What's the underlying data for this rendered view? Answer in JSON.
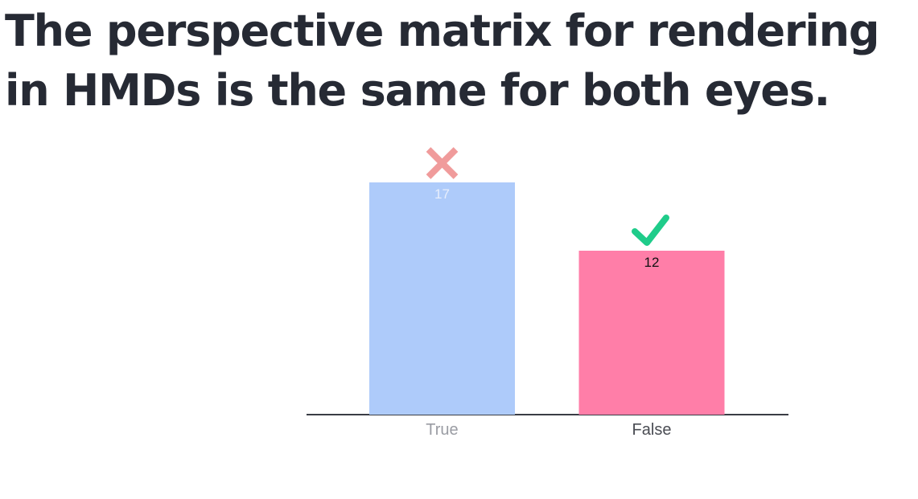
{
  "slide": {
    "question": "The perspective matrix for rendering in HMDs is the same for both eyes."
  },
  "chart_data": {
    "type": "bar",
    "categories": [
      "True",
      "False"
    ],
    "values": [
      17,
      12
    ],
    "ylim": [
      0,
      17
    ],
    "correct": [
      false,
      true
    ],
    "value_labels": [
      "17",
      "12"
    ],
    "bar_colors": [
      "#aecbfa",
      "#ff7ea8"
    ],
    "value_label_colors": [
      "#e8eefc",
      "#111111"
    ],
    "category_label_colors": [
      "#9a9ca3",
      "#4a4c53"
    ],
    "marks": {
      "incorrect_icon": "cross-icon",
      "correct_icon": "checkmark-icon",
      "incorrect_color": "#f09b9b",
      "correct_color": "#1fcc8a"
    },
    "axis_color": "#3a3d45",
    "title": "",
    "xlabel": "",
    "ylabel": ""
  }
}
